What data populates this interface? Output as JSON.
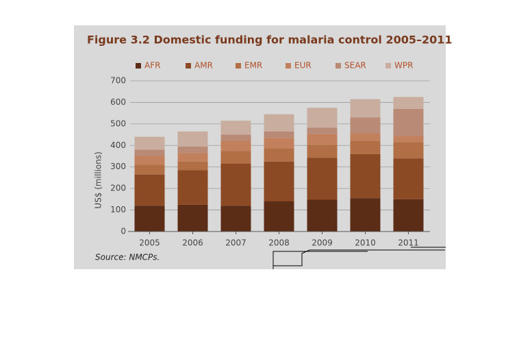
{
  "chart_data": {
    "type": "stacked_bar",
    "title": "Figure 3.2 Domestic funding for malaria control 2005–2011",
    "y_label": "US$ (millions)",
    "source": "Source: NMCPs.",
    "categories": [
      "2005",
      "2006",
      "2007",
      "2008",
      "2009",
      "2010",
      "2011"
    ],
    "series": [
      {
        "name": "AFR",
        "color": "#5b2c16",
        "values": [
          120,
          125,
          120,
          140,
          148,
          155,
          150
        ]
      },
      {
        "name": "AMR",
        "color": "#8c4a24",
        "values": [
          145,
          160,
          195,
          185,
          195,
          205,
          190
        ]
      },
      {
        "name": "EMR",
        "color": "#b26f45",
        "values": [
          45,
          40,
          60,
          60,
          60,
          60,
          75
        ]
      },
      {
        "name": "EUR",
        "color": "#c2805c",
        "values": [
          40,
          40,
          45,
          50,
          50,
          35,
          30
        ]
      },
      {
        "name": "SEAR",
        "color": "#b98a76",
        "values": [
          30,
          30,
          30,
          30,
          30,
          75,
          125
        ]
      },
      {
        "name": "WPR",
        "color": "#c9aea0",
        "values": [
          60,
          70,
          65,
          80,
          92,
          85,
          55
        ]
      }
    ],
    "ylim": [
      0,
      700
    ],
    "yticks": [
      0,
      100,
      200,
      300,
      400,
      500,
      600,
      700
    ],
    "grid": true
  }
}
